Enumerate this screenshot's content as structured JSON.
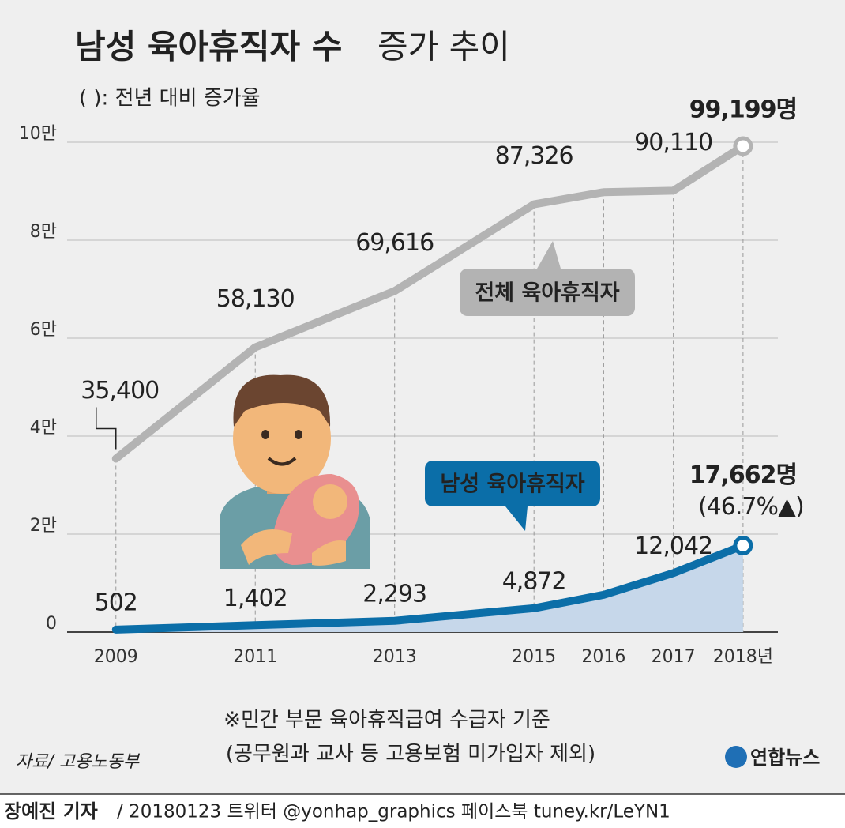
{
  "chart_data": {
    "type": "line",
    "title": [
      "남성 육아휴직자 수",
      "증가 추이"
    ],
    "subtitle": "( ): 전년 대비 증가율",
    "x": [
      2009,
      2011,
      2013,
      2015,
      2016,
      2017,
      2018
    ],
    "xlim": [
      2008.3,
      2018.5
    ],
    "xticks": [
      2009,
      2011,
      2013,
      2015,
      2016,
      2017,
      {
        "value": 2018,
        "label": "2018년"
      }
    ],
    "ylim": [
      0,
      100000
    ],
    "yticks": [
      {
        "value": 0,
        "label": "0"
      },
      {
        "value": 20000,
        "label": "2만"
      },
      {
        "value": 40000,
        "label": "4만"
      },
      {
        "value": 60000,
        "label": "6만"
      },
      {
        "value": 80000,
        "label": "8만"
      },
      {
        "value": 100000,
        "label": "10만"
      }
    ],
    "grid": true,
    "series": [
      {
        "name": "전체 육아휴직자",
        "color": "#b3b3b3",
        "values": [
          35400,
          58130,
          69616,
          87326,
          89800,
          90110,
          99199
        ],
        "value_labels": [
          "35,400",
          "58,130",
          "69,616",
          "87,326",
          null,
          "90,110",
          "99,199명"
        ]
      },
      {
        "name": "남성 육아휴직자",
        "color": "#0b6ea8",
        "fill": "#c6d7ea",
        "values": [
          502,
          1402,
          2293,
          4872,
          7600,
          12042,
          17662
        ],
        "value_labels": [
          "502",
          "1,402",
          "2,293",
          "4,872",
          null,
          "12,042",
          "17,662명"
        ]
      }
    ],
    "annotations": [
      "(46.7%▲)"
    ],
    "notes": [
      "※민간 부문 육아휴직급여 수급자 기준",
      "(공무원과 교사 등 고용보험 미가입자 제외)"
    ],
    "source": "자료/ 고용노동부",
    "logo": "연합뉴스",
    "byline": "장예진 기자",
    "credit": "/ 20180123 트위터 @yonhap_graphics  페이스북 tuney.kr/LeYN1"
  }
}
